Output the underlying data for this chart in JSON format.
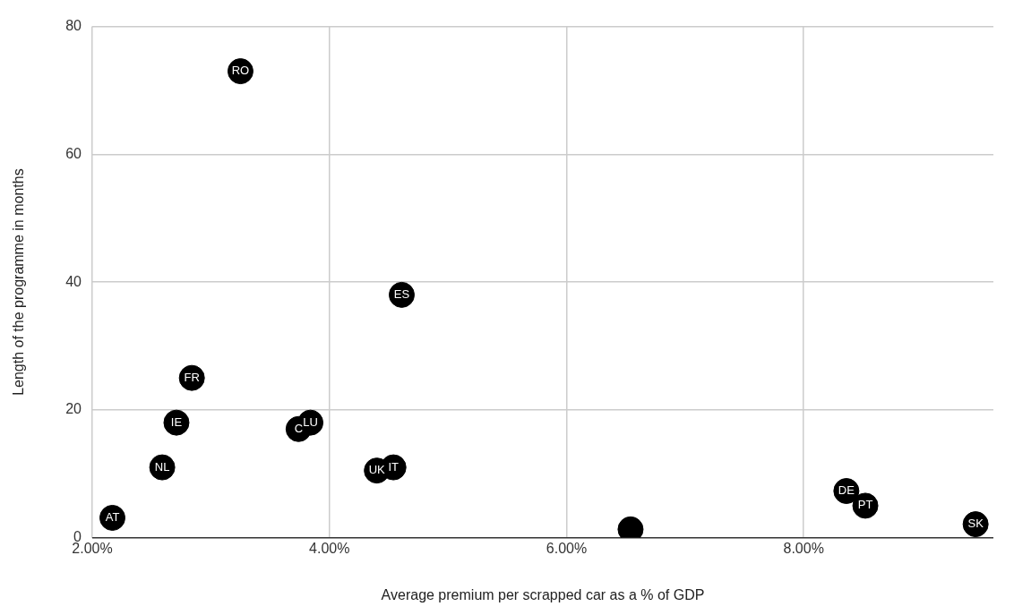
{
  "chart_data": {
    "type": "scatter",
    "xlabel": "Average premium per scrapped car as a % of GDP",
    "ylabel": "Length of the programme in months",
    "x": [
      2.17,
      2.59,
      2.71,
      2.84,
      3.25,
      3.74,
      3.84,
      4.61,
      4.4,
      4.54,
      6.54,
      8.36,
      8.52,
      9.45
    ],
    "series": [
      {
        "color": "#000000",
        "values": [
          3.1,
          11,
          18,
          25,
          73,
          17,
          18,
          38,
          10.5,
          11,
          1.3,
          7.3,
          5,
          2.1
        ],
        "value_labels": [
          "AT",
          "NL",
          "IE",
          "FR",
          "RO",
          "C",
          "LU",
          "ES",
          "UK",
          "IT",
          null,
          "DE",
          "PT",
          "SK"
        ]
      }
    ],
    "xlim": [
      2,
      9.6
    ],
    "xticks": [
      {
        "value": 2,
        "label": "2.00%"
      },
      {
        "value": 4,
        "label": "4.00%"
      },
      {
        "value": 6,
        "label": "6.00%"
      },
      {
        "value": 8,
        "label": "8.00%"
      }
    ],
    "ylim": [
      0,
      80
    ],
    "yticks": [
      0,
      20,
      40,
      60,
      80
    ],
    "grid": true,
    "legend": false,
    "marker": "circle"
  }
}
